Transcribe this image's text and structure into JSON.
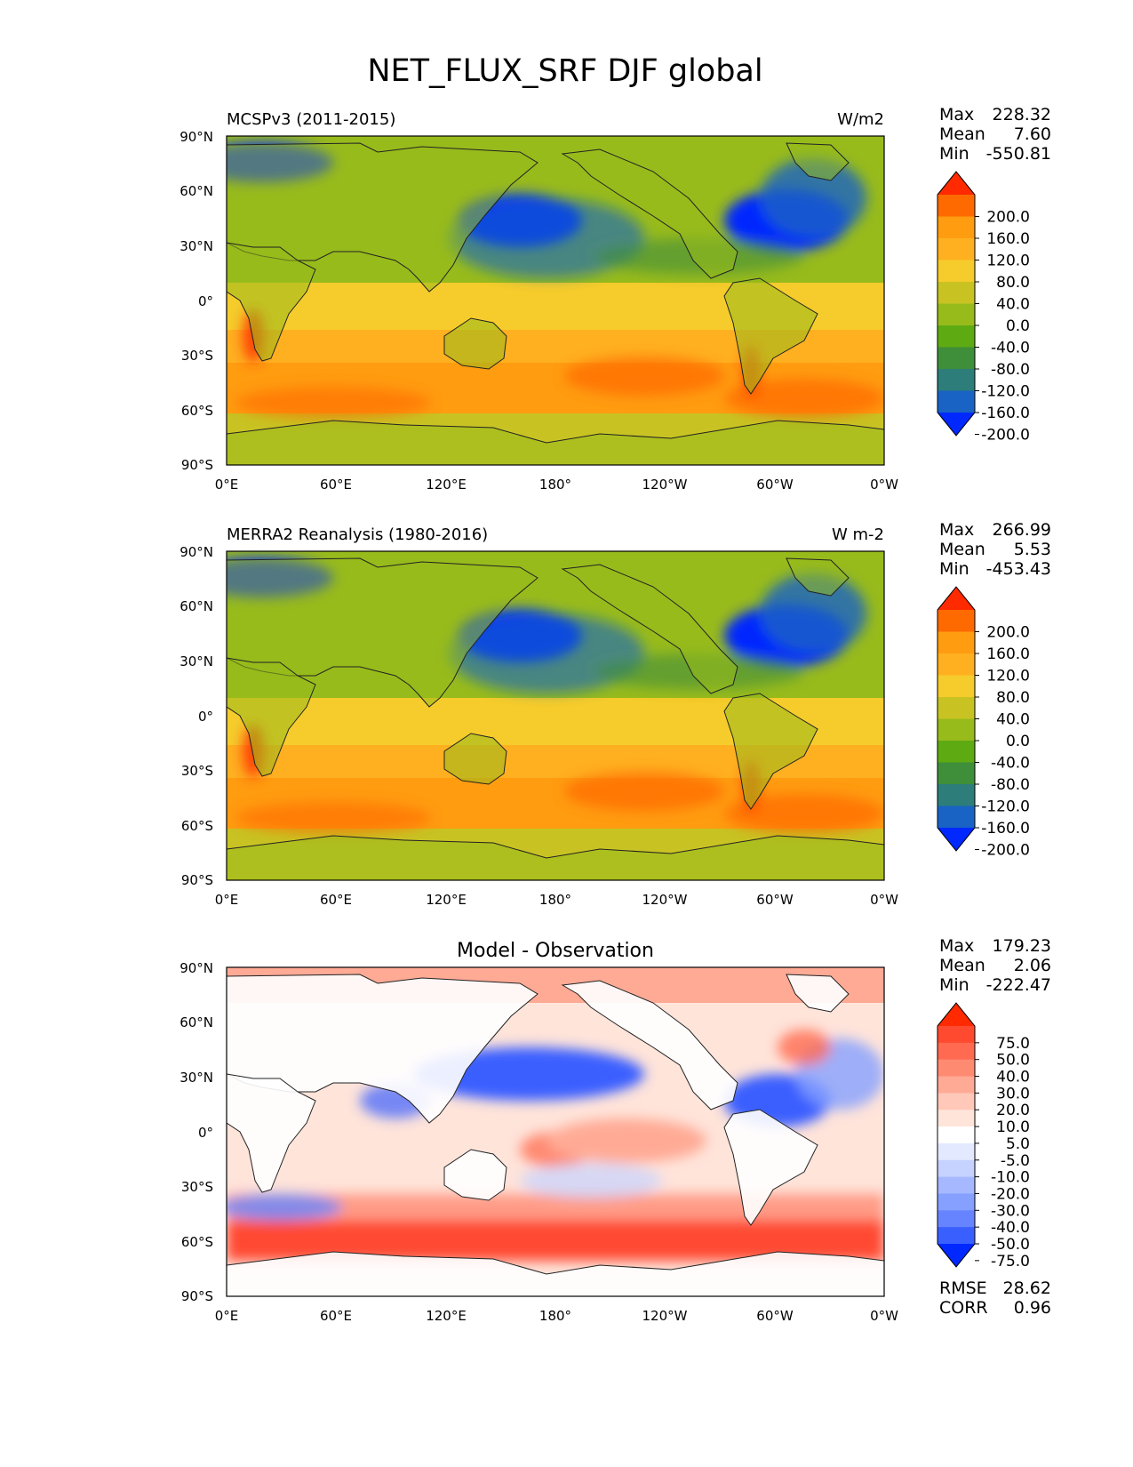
{
  "title": "NET_FLUX_SRF DJF global",
  "lat_labels": [
    "90°N",
    "60°N",
    "30°N",
    "0°",
    "30°S",
    "60°S",
    "90°S"
  ],
  "lon_labels": [
    "0°E",
    "60°E",
    "120°E",
    "180°",
    "120°W",
    "60°W",
    "0°W"
  ],
  "panels": [
    {
      "id": "model",
      "left_title": "MCSPv3 (2011-2015)",
      "center_title": "",
      "right_title": "W/m2",
      "stats": [
        [
          "Max",
          "228.32"
        ],
        [
          "Mean",
          "7.60"
        ],
        [
          "Min",
          "-550.81"
        ]
      ],
      "colorbar": {
        "labels": [
          "200.0",
          "160.0",
          "120.0",
          "80.0",
          "40.0",
          "0.0",
          "-40.0",
          "-80.0",
          "-120.0",
          "-160.0",
          "-200.0"
        ],
        "colors": [
          "#ff2a00",
          "#ff6a00",
          "#ff9c10",
          "#ffb020",
          "#f5cc2b",
          "#c8c323",
          "#98bb1c",
          "#5eaa12",
          "#3f8e3a",
          "#2d7d7a",
          "#1863c4",
          "#0028ff"
        ]
      }
    },
    {
      "id": "obs",
      "left_title": "MERRA2 Reanalysis (1980-2016)",
      "center_title": "",
      "right_title": "W m-2",
      "stats": [
        [
          "Max",
          "266.99"
        ],
        [
          "Mean",
          "5.53"
        ],
        [
          "Min",
          "-453.43"
        ]
      ],
      "colorbar": {
        "labels": [
          "200.0",
          "160.0",
          "120.0",
          "80.0",
          "40.0",
          "0.0",
          "-40.0",
          "-80.0",
          "-120.0",
          "-160.0",
          "-200.0"
        ],
        "colors": [
          "#ff2a00",
          "#ff6a00",
          "#ff9c10",
          "#ffb020",
          "#f5cc2b",
          "#c8c323",
          "#98bb1c",
          "#5eaa12",
          "#3f8e3a",
          "#2d7d7a",
          "#1863c4",
          "#0028ff"
        ]
      }
    },
    {
      "id": "diff",
      "left_title": "",
      "center_title": "Model - Observation",
      "right_title": "",
      "stats": [
        [
          "Max",
          "179.23"
        ],
        [
          "Mean",
          "2.06"
        ],
        [
          "Min",
          "-222.47"
        ]
      ],
      "extra_stats": [
        [
          "RMSE",
          "28.62"
        ],
        [
          "CORR",
          "0.96"
        ]
      ],
      "colorbar": {
        "labels": [
          "75.0",
          "50.0",
          "40.0",
          "30.0",
          "20.0",
          "10.0",
          "5.0",
          "-5.0",
          "-10.0",
          "-20.0",
          "-30.0",
          "-40.0",
          "-50.0",
          "-75.0"
        ],
        "colors": [
          "#ff2a00",
          "#ff4a30",
          "#ff6a50",
          "#ff8a72",
          "#ffaa95",
          "#ffc8b8",
          "#ffe4da",
          "#ffffff",
          "#e3e9ff",
          "#c6d2ff",
          "#a6b8ff",
          "#86a0ff",
          "#6684ff",
          "#3a5fff",
          "#0028ff"
        ]
      }
    }
  ],
  "chart_data": {
    "type": "heatmap",
    "title": "NET_FLUX_SRF DJF global",
    "xlim": [
      0,
      360
    ],
    "ylim": [
      -90,
      90
    ],
    "panels": [
      {
        "name": "MCSPv3 (2011-2015)",
        "units": "W/m2",
        "max": 228.32,
        "mean": 7.6,
        "min": -550.81,
        "levels": [
          -200,
          -160,
          -120,
          -80,
          -40,
          0,
          40,
          80,
          120,
          160,
          200
        ]
      },
      {
        "name": "MERRA2 Reanalysis (1980-2016)",
        "units": "W m-2",
        "max": 266.99,
        "mean": 5.53,
        "min": -453.43,
        "levels": [
          -200,
          -160,
          -120,
          -80,
          -40,
          0,
          40,
          80,
          120,
          160,
          200
        ]
      },
      {
        "name": "Model - Observation",
        "max": 179.23,
        "mean": 2.06,
        "min": -222.47,
        "rmse": 28.62,
        "corr": 0.96,
        "levels": [
          -75,
          -50,
          -40,
          -30,
          -20,
          -10,
          -5,
          5,
          10,
          20,
          30,
          40,
          50,
          75
        ]
      }
    ]
  }
}
